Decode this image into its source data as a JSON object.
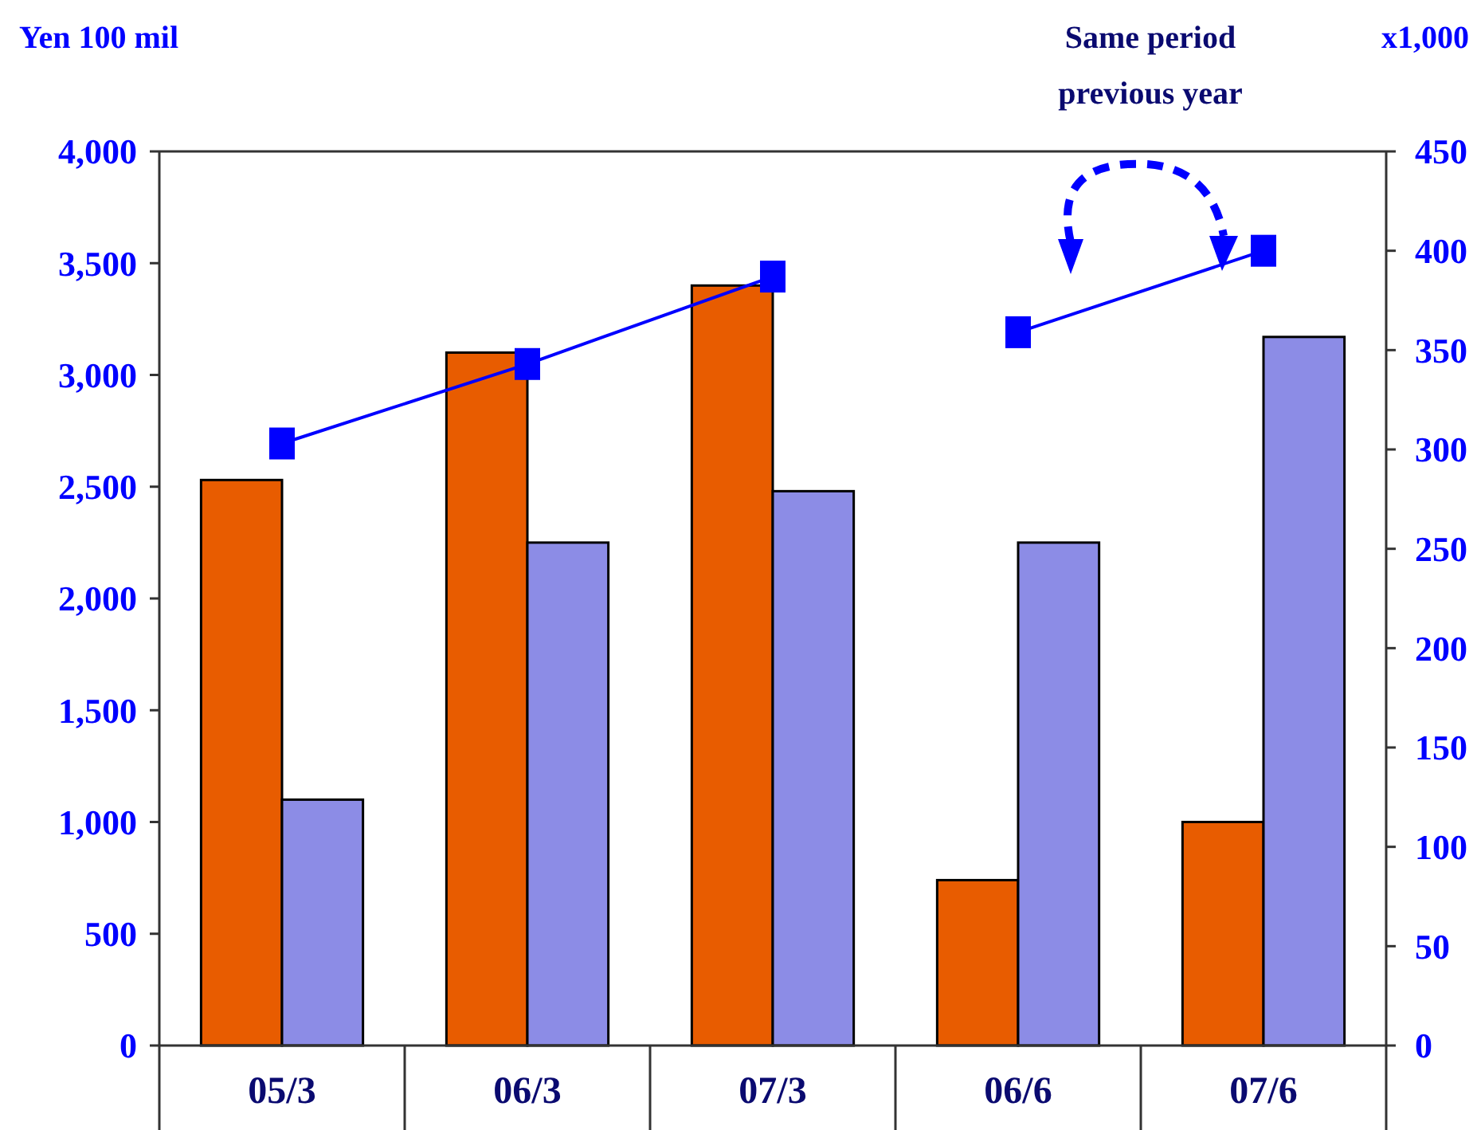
{
  "chart_data": {
    "type": "bar",
    "categories": [
      "05/3",
      "06/3",
      "07/3",
      "06/6",
      "07/6"
    ],
    "ylabel": "Yen 100 mil",
    "y2label": "x1,000",
    "ylim": [
      0,
      4000
    ],
    "yticks": [
      0,
      {
        "value": 500,
        "label": "500"
      },
      {
        "value": 1000,
        "label": "1,000"
      },
      {
        "value": 1500,
        "label": "1,500"
      },
      {
        "value": 2000,
        "label": "2,000"
      },
      {
        "value": 2500,
        "label": "2,500"
      },
      {
        "value": 3000,
        "label": "3,000"
      },
      {
        "value": 3500,
        "label": "3,500"
      },
      {
        "value": 4000,
        "label": "4,000"
      }
    ],
    "y2lim": [
      0,
      450
    ],
    "y2ticks": [
      0,
      50,
      100,
      150,
      200,
      250,
      300,
      350,
      400,
      450
    ],
    "series": [
      {
        "color": "#e85c00",
        "values": [
          2530,
          3100,
          3400,
          740,
          1000
        ]
      },
      {
        "color": "#8c8ce6",
        "values": [
          1100,
          2250,
          2480,
          2250,
          3170
        ]
      },
      {
        "type": "line",
        "axis": "y2",
        "color": "#0000ff",
        "marker": "square",
        "line_style": "solid",
        "values": [
          303,
          343,
          387,
          null,
          null
        ]
      },
      {
        "type": "line",
        "axis": "y2",
        "color": "#0000ff",
        "marker": "square",
        "line_style": "solid",
        "values": [
          null,
          null,
          null,
          359,
          400
        ]
      }
    ],
    "annotations": [
      "Same period previous year"
    ],
    "grid": false
  }
}
